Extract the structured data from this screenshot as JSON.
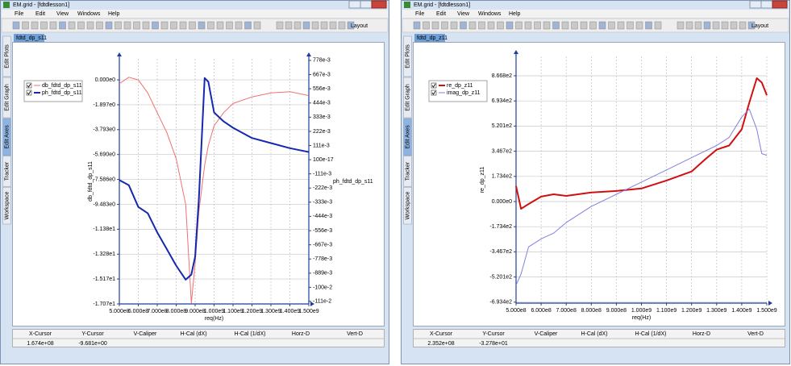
{
  "windows": [
    {
      "title": "EM.grid - [fdtdlesson1]",
      "menu": [
        "File",
        "Edit",
        "View",
        "Windows",
        "Help"
      ],
      "layout_button": "Layout",
      "tab": "fdtd_dp_s11",
      "side_tabs": [
        "Edit Plots",
        "Edit Graph",
        "Edit Axes",
        "Tracker",
        "Workspace"
      ],
      "cursor_table": {
        "headers": [
          "X-Cursor",
          "Y-Cursor",
          "V-Caliper",
          "H-Cal (dX)",
          "H-Cal (1/dX)",
          "Horz-D",
          "Vert-D"
        ],
        "values": [
          "1.674e+08",
          "-9.681e+00"
        ]
      }
    },
    {
      "title": "EM.grid - [fdtdlesson1]",
      "menu": [
        "File",
        "Edit",
        "View",
        "Windows",
        "Help"
      ],
      "layout_button": "Layout",
      "tab": "fdtd_dp_z11",
      "side_tabs": [
        "Edit Plots",
        "Edit Graph",
        "Edit Axes",
        "Tracker",
        "Workspace"
      ],
      "cursor_table": {
        "headers": [
          "X-Cursor",
          "Y-Cursor",
          "V-Caliper",
          "H-Cal (dX)",
          "H-Cal (1/dX)",
          "Horz-D",
          "Vert-D"
        ],
        "values": [
          "2.352e+08",
          "-3.278e+01"
        ]
      }
    }
  ],
  "chart_data": [
    {
      "type": "line",
      "x_label": "req(Hz)",
      "y_label": "db_fdtd_dp_s11",
      "y2_label": "ph_fdtd_dp_s11",
      "legend": "upper-left",
      "grid": true,
      "xlim": [
        500000000,
        1500000000
      ],
      "xticks": [
        {
          "value": 500000000,
          "label": "5.000e8"
        },
        {
          "value": 600000000,
          "label": "6.000e8"
        },
        {
          "value": 700000000,
          "label": "7.000e8"
        },
        {
          "value": 800000000,
          "label": "8.000e8"
        },
        {
          "value": 900000000,
          "label": "9.000e8"
        },
        {
          "value": 1000000000,
          "label": "1.000e9"
        },
        {
          "value": 1100000000,
          "label": "1.100e9"
        },
        {
          "value": 1200000000,
          "label": "1.200e9"
        },
        {
          "value": 1300000000,
          "label": "1.300e9"
        },
        {
          "value": 1400000000,
          "label": "1.400e9"
        },
        {
          "value": 1500000000,
          "label": "1.500e9"
        }
      ],
      "ylim": [
        -17.07,
        1.6
      ],
      "yticks": [
        {
          "value": 0,
          "label": "0.000e0"
        },
        {
          "value": -1.897,
          "label": "-1.897e0"
        },
        {
          "value": -3.793,
          "label": "-3.793e0"
        },
        {
          "value": -5.69,
          "label": "-5.690e0"
        },
        {
          "value": -7.586,
          "label": "-7.586e0"
        },
        {
          "value": -9.483,
          "label": "-9.483e0"
        },
        {
          "value": -11.38,
          "label": "-1.138e1"
        },
        {
          "value": -13.28,
          "label": "-1.328e1"
        },
        {
          "value": -15.17,
          "label": "-1.517e1"
        },
        {
          "value": -17.07,
          "label": "-1.707e1"
        }
      ],
      "y2lim": [
        -1.13,
        0.79
      ],
      "y2ticks": [
        {
          "value": 0.778,
          "label": "778e-3"
        },
        {
          "value": 0.667,
          "label": "667e-3"
        },
        {
          "value": 0.556,
          "label": "556e-3"
        },
        {
          "value": 0.444,
          "label": "444e-3"
        },
        {
          "value": 0.333,
          "label": "333e-3"
        },
        {
          "value": 0.222,
          "label": "222e-3"
        },
        {
          "value": 0.111,
          "label": "111e-3"
        },
        {
          "value": 1e-15,
          "label": "100e-17"
        },
        {
          "value": -0.111,
          "label": "-111e-3"
        },
        {
          "value": -0.222,
          "label": "-222e-3"
        },
        {
          "value": -0.333,
          "label": "-333e-3"
        },
        {
          "value": -0.444,
          "label": "-444e-3"
        },
        {
          "value": -0.556,
          "label": "-556e-3"
        },
        {
          "value": -0.667,
          "label": "-667e-3"
        },
        {
          "value": -0.778,
          "label": "-778e-3"
        },
        {
          "value": -0.889,
          "label": "-889e-3"
        },
        {
          "value": -1.0,
          "label": "-100e-2"
        },
        {
          "value": -1.11,
          "label": "-111e-2"
        }
      ],
      "x": [
        500000000,
        550000000,
        600000000,
        650000000,
        700000000,
        750000000,
        800000000,
        850000000,
        880000000,
        900000000,
        920000000,
        950000000,
        970000000,
        1000000000,
        1050000000,
        1100000000,
        1200000000,
        1300000000,
        1400000000,
        1500000000
      ],
      "series": [
        {
          "name": "db_fdtd_dp_s11",
          "color": "#f07070",
          "line_width": 1,
          "values": [
            -0.3,
            0.2,
            0.0,
            -1.0,
            -2.5,
            -4.0,
            -6.0,
            -9.5,
            -17.0,
            -14.0,
            -10.0,
            -6.5,
            -5.0,
            -3.5,
            -2.5,
            -1.8,
            -1.3,
            -1.0,
            -0.9,
            -1.2
          ]
        },
        {
          "name": "ph_fdtd_dp_s11",
          "color": "#1428b0",
          "line_width": 2,
          "axis": "y2",
          "values": [
            -0.16,
            -0.2,
            -0.37,
            -0.42,
            -0.57,
            -0.7,
            -0.83,
            -0.94,
            -0.9,
            -0.76,
            -0.3,
            0.64,
            0.61,
            0.37,
            0.3,
            0.25,
            0.17,
            0.13,
            0.09,
            0.06
          ]
        }
      ]
    },
    {
      "type": "line",
      "x_label": "req(Hz)",
      "y_label": "re_dp_z11",
      "legend": "upper-left",
      "grid": true,
      "xlim": [
        500000000,
        1500000000
      ],
      "xticks": [
        {
          "value": 500000000,
          "label": "5.000e8"
        },
        {
          "value": 600000000,
          "label": "6.000e8"
        },
        {
          "value": 700000000,
          "label": "7.000e8"
        },
        {
          "value": 800000000,
          "label": "8.000e8"
        },
        {
          "value": 900000000,
          "label": "9.000e8"
        },
        {
          "value": 1000000000,
          "label": "1.000e9"
        },
        {
          "value": 1100000000,
          "label": "1.100e9"
        },
        {
          "value": 1200000000,
          "label": "1.200e9"
        },
        {
          "value": 1300000000,
          "label": "1.300e9"
        },
        {
          "value": 1400000000,
          "label": "1.400e9"
        },
        {
          "value": 1500000000,
          "label": "1.500e9"
        }
      ],
      "ylim": [
        -700,
        1000
      ],
      "yticks": [
        {
          "value": 866.8,
          "label": "8.668e2"
        },
        {
          "value": 693.4,
          "label": "6.934e2"
        },
        {
          "value": 520.1,
          "label": "5.201e2"
        },
        {
          "value": 346.7,
          "label": "3.467e2"
        },
        {
          "value": 173.4,
          "label": "1.734e2"
        },
        {
          "value": 0,
          "label": "0.000e0"
        },
        {
          "value": -173.4,
          "label": "-1.734e2"
        },
        {
          "value": -346.7,
          "label": "-3.467e2"
        },
        {
          "value": -520.1,
          "label": "-5.201e2"
        },
        {
          "value": -693.4,
          "label": "-6.934e2"
        }
      ],
      "x": [
        500000000,
        520000000,
        550000000,
        600000000,
        650000000,
        700000000,
        800000000,
        900000000,
        1000000000,
        1100000000,
        1200000000,
        1250000000,
        1300000000,
        1350000000,
        1400000000,
        1430000000,
        1460000000,
        1480000000,
        1500000000
      ],
      "series": [
        {
          "name": "re_dp_z11",
          "color": "#d01010",
          "line_width": 2,
          "values": [
            106,
            -50,
            -17,
            34,
            50,
            39,
            62,
            73,
            90,
            145,
            207,
            285,
            358,
            386,
            498,
            680,
            850,
            820,
            733
          ]
        },
        {
          "name": "imag_dp_z11",
          "color": "#8080e0",
          "line_width": 1,
          "values": [
            -576,
            -500,
            -313,
            -257,
            -218,
            -145,
            -34,
            50,
            134,
            218,
            302,
            345,
            386,
            442,
            582,
            638,
            498,
            330,
            319
          ]
        }
      ]
    }
  ]
}
